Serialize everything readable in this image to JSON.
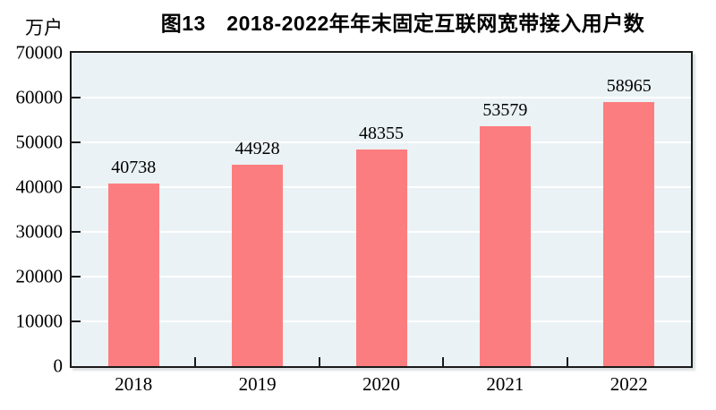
{
  "chart_data": {
    "type": "bar",
    "title": "图13　2018-2022年年末固定互联网宽带接入用户数",
    "unit_label": "万户",
    "ylabel": "万户",
    "xlabel": "",
    "categories": [
      "2018",
      "2019",
      "2020",
      "2021",
      "2022"
    ],
    "values": [
      40738,
      44928,
      48355,
      53579,
      58965
    ],
    "value_labels": [
      "40738",
      "44928",
      "48355",
      "53579",
      "58965"
    ],
    "ylim": [
      0,
      70000
    ],
    "ytick_step": 10000,
    "ytick_labels": [
      "0",
      "10000",
      "20000",
      "30000",
      "40000",
      "50000",
      "60000",
      "70000"
    ],
    "grid": true,
    "legend": "none",
    "colors": {
      "bar": "#fc7d7f",
      "plot_bg": "#eaf2f5",
      "gridline": "#ffffff",
      "axis": "#1a1a1a",
      "text": "#000000"
    }
  }
}
